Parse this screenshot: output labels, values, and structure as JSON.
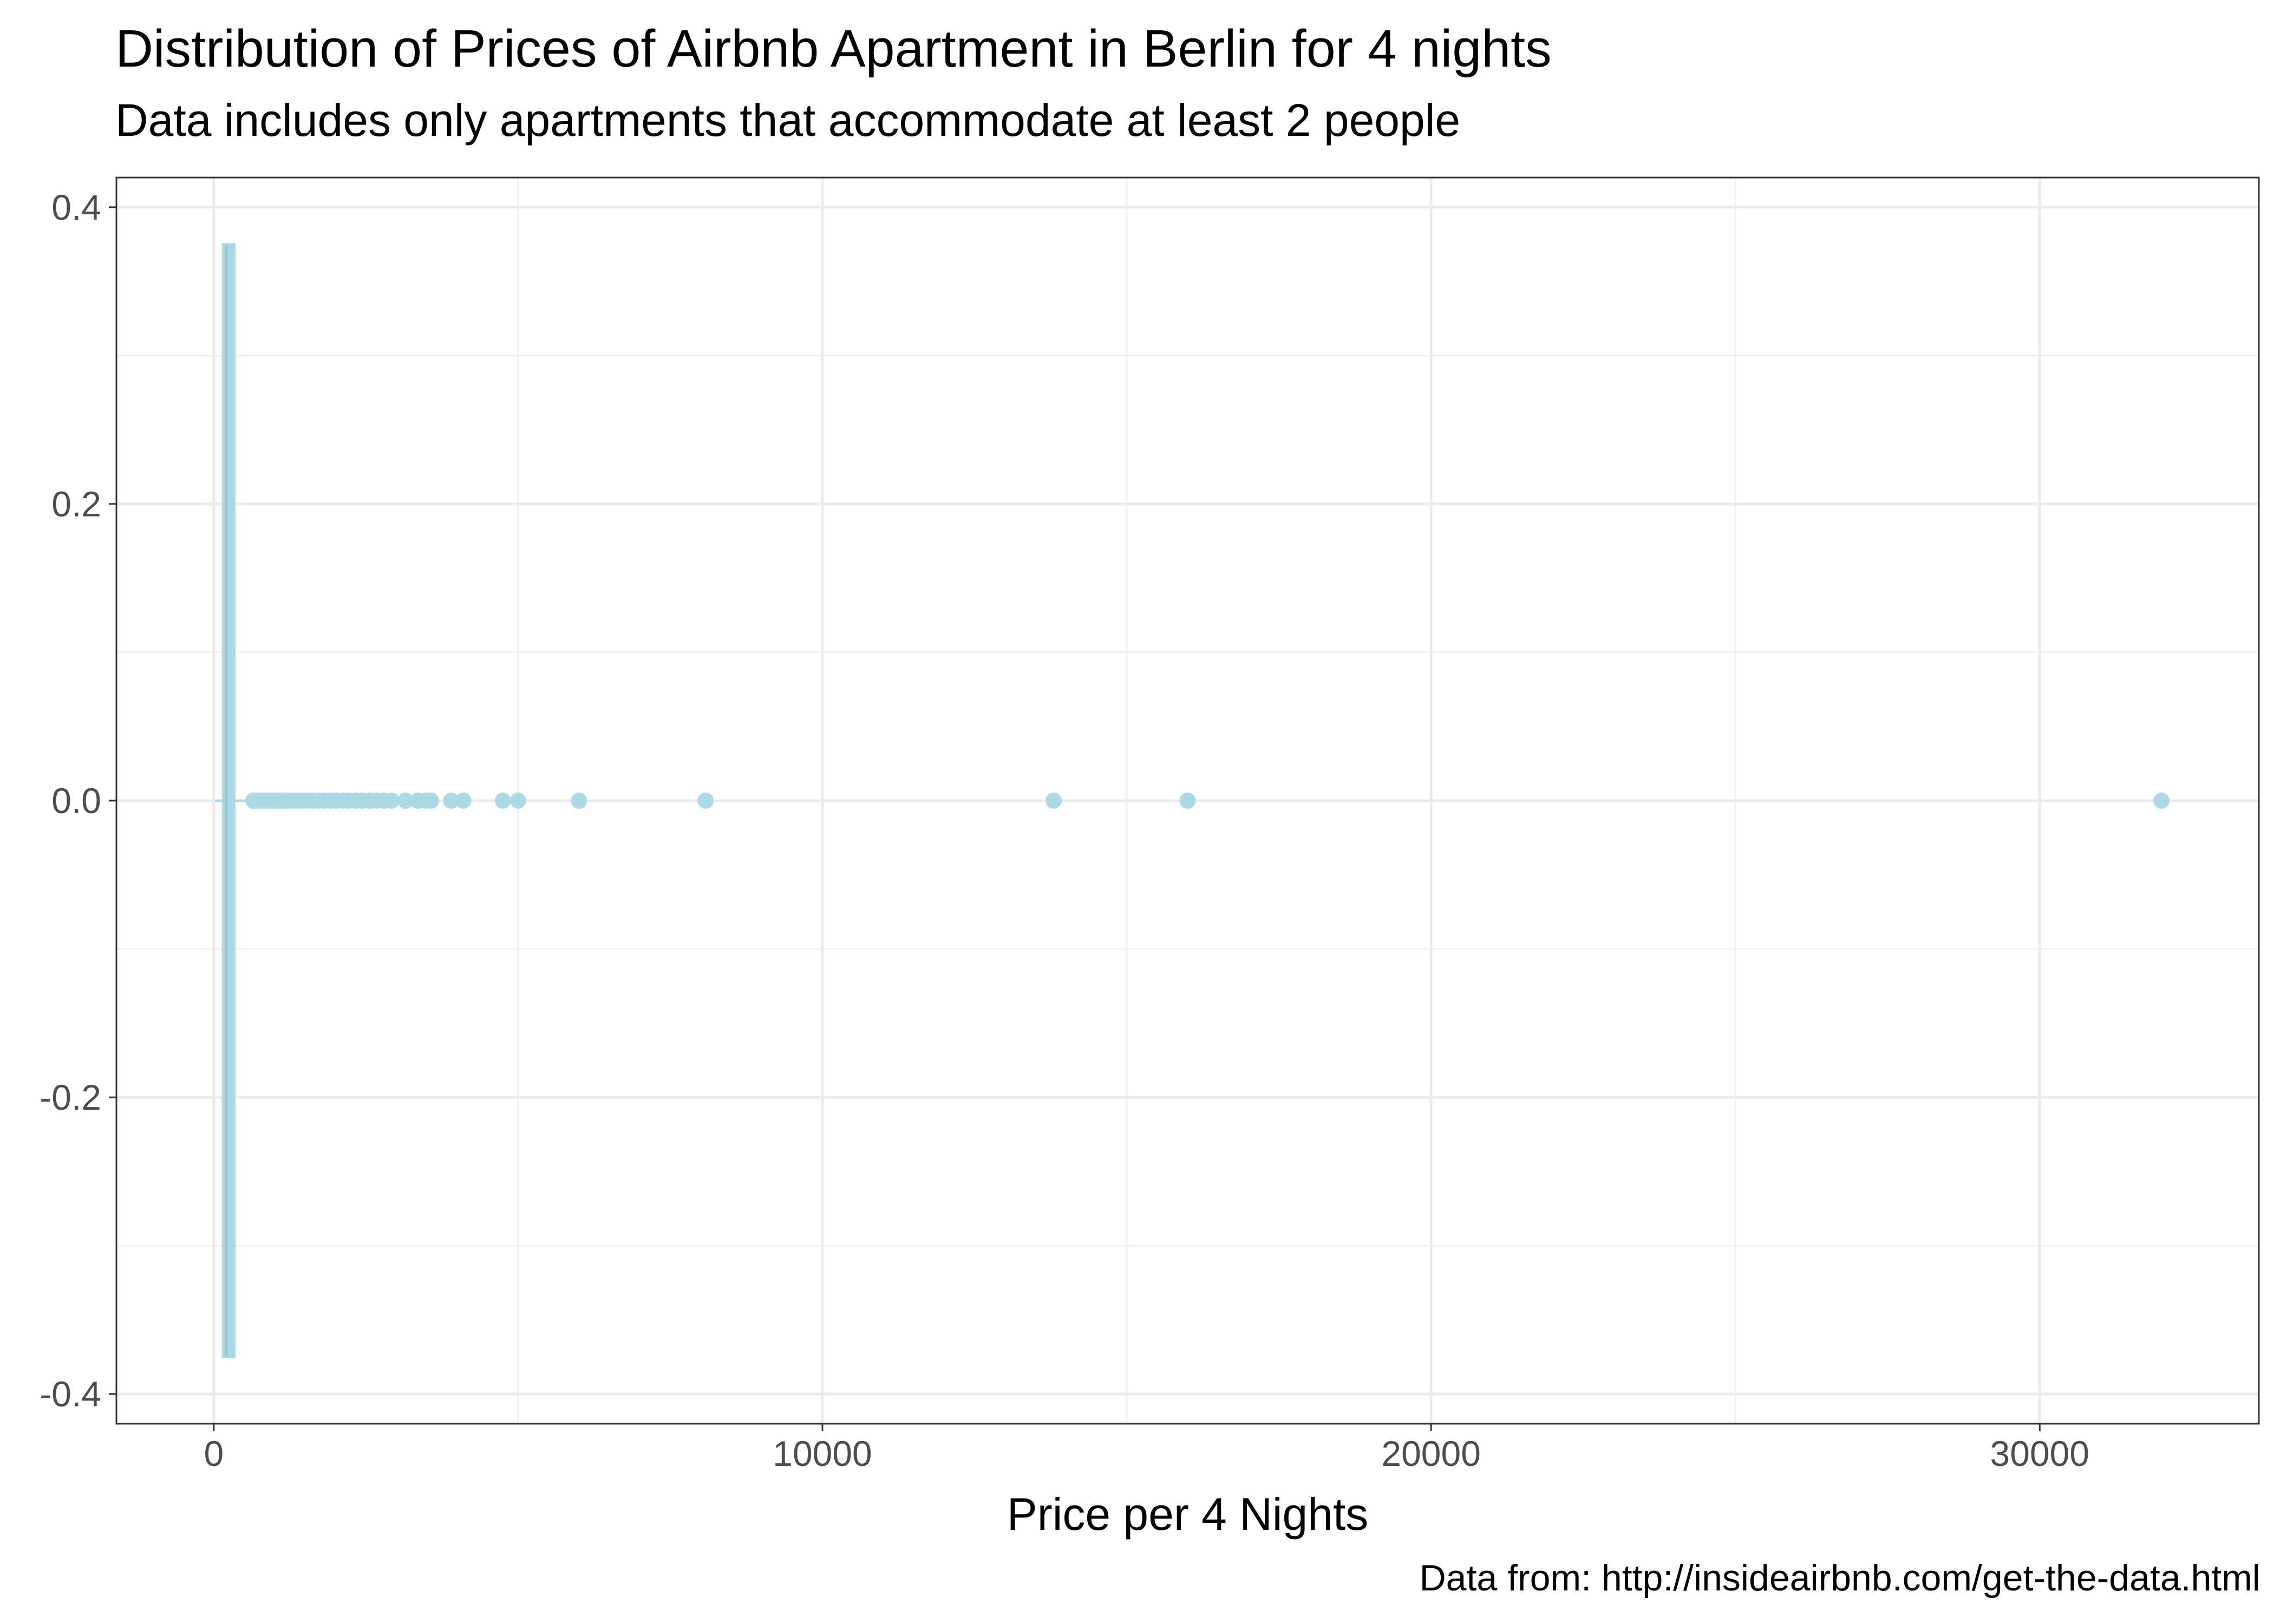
{
  "chart_data": {
    "type": "boxplot",
    "title": "Distribution of Prices of Airbnb Apartment in Berlin for 4 nights",
    "subtitle": "Data includes only apartments that accommodate at least 2 people",
    "caption": "Data from: http://insideairbnb.com/get-the-data.html",
    "xlabel": "Price per 4 Nights",
    "ylabel": "",
    "xlim": [
      -1600,
      33600
    ],
    "ylim": [
      -0.42,
      0.42
    ],
    "x_ticks": [
      0,
      10000,
      20000,
      30000
    ],
    "x_tick_labels": [
      "0",
      "10000",
      "20000",
      "30000"
    ],
    "y_ticks": [
      0.4,
      0.2,
      0.0,
      -0.2,
      -0.4
    ],
    "y_tick_labels": [
      "0.4",
      "0.2",
      "0.0",
      "-0.2",
      "-0.4"
    ],
    "grid": true,
    "fill_color": "#ADD8E6",
    "box": {
      "y_center": 0.0,
      "y_top": 0.375,
      "y_bottom": -0.375,
      "q1": 150,
      "median": 210,
      "q3": 340,
      "whisker_low": 20,
      "whisker_high": 620
    },
    "outliers": [
      650,
      700,
      760,
      820,
      880,
      950,
      1020,
      1100,
      1180,
      1260,
      1350,
      1440,
      1530,
      1620,
      1720,
      1820,
      1920,
      2020,
      2120,
      2220,
      2330,
      2440,
      2560,
      2680,
      2800,
      2920,
      3150,
      3350,
      3480,
      3570,
      3900,
      4100,
      4750,
      5000,
      6000,
      8080,
      13800,
      16000,
      32000
    ]
  }
}
